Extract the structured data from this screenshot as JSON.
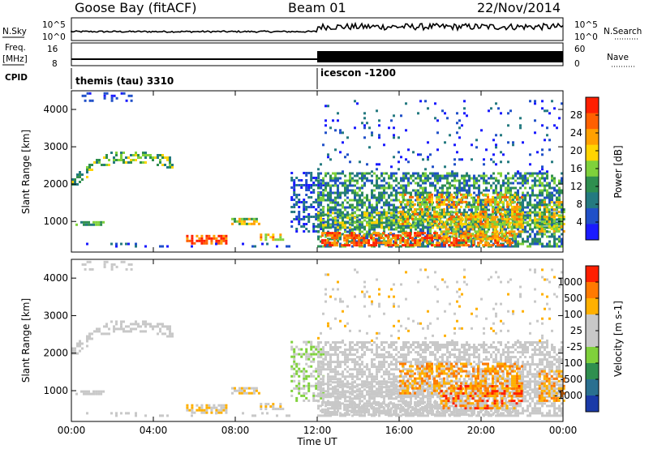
{
  "header": {
    "station": "Goose Bay (fitACF)",
    "beam": "Beam 01",
    "date": "22/Nov/2014"
  },
  "strip": {
    "nsky_label": "N.Sky",
    "nsearch_label": "N.Search",
    "nsky_ticks": [
      "10^5",
      "10^0"
    ],
    "nsearch_ticks": [
      "10^5",
      "10^0"
    ],
    "freq_label_1": "Freq.",
    "freq_label_2": "[MHz]",
    "freq_ticks": [
      "16",
      "8"
    ],
    "nave_label": "Nave",
    "nave_ticks": [
      "60",
      "0"
    ],
    "cpid_label": "CPID",
    "cpid_segments": [
      {
        "name": "themis (tau) 3310",
        "start_hour": 0
      },
      {
        "name": "icescon -1200",
        "start_hour": 12
      }
    ]
  },
  "axes": {
    "ylabel": "Slant Range [km]",
    "yticks": [
      "4000",
      "3000",
      "2000",
      "1000"
    ],
    "ytick_values": [
      4000,
      3000,
      2000,
      1000
    ],
    "yrange": [
      180,
      4500
    ],
    "xlabel": "Time UT",
    "xticks": [
      "00:00",
      "04:00",
      "08:00",
      "12:00",
      "16:00",
      "20:00",
      "00:00"
    ],
    "xtick_hours": [
      0,
      4,
      8,
      12,
      16,
      20,
      24
    ]
  },
  "chart_data": [
    {
      "type": "heatmap",
      "name": "power",
      "colorbar_label": "Power [dB]",
      "colorbar_ticks": [
        "28",
        "24",
        "20",
        "16",
        "12",
        "8",
        "4"
      ],
      "colorbar_tick_values": [
        28,
        24,
        20,
        16,
        12,
        8,
        4
      ],
      "colorbar_range": [
        0,
        32
      ],
      "colors": [
        "#1a1aff",
        "#2050c8",
        "#247a80",
        "#2f8f4f",
        "#7fd13b",
        "#ffd400",
        "#ffa000",
        "#ff6000",
        "#ff1f00"
      ]
    },
    {
      "type": "heatmap",
      "name": "velocity",
      "colorbar_label": "Velocity [m s-1]",
      "colorbar_ticks": [
        "1000",
        "500",
        "100",
        "25",
        "-25",
        "-100",
        "-500",
        "-1000"
      ],
      "colors": [
        "#1a3aa8",
        "#2a7090",
        "#2f8f4f",
        "#7fd13b",
        "#c8c8c8",
        "#c8c8c8",
        "#ffb000",
        "#ff7a00",
        "#ff1f00"
      ]
    }
  ]
}
